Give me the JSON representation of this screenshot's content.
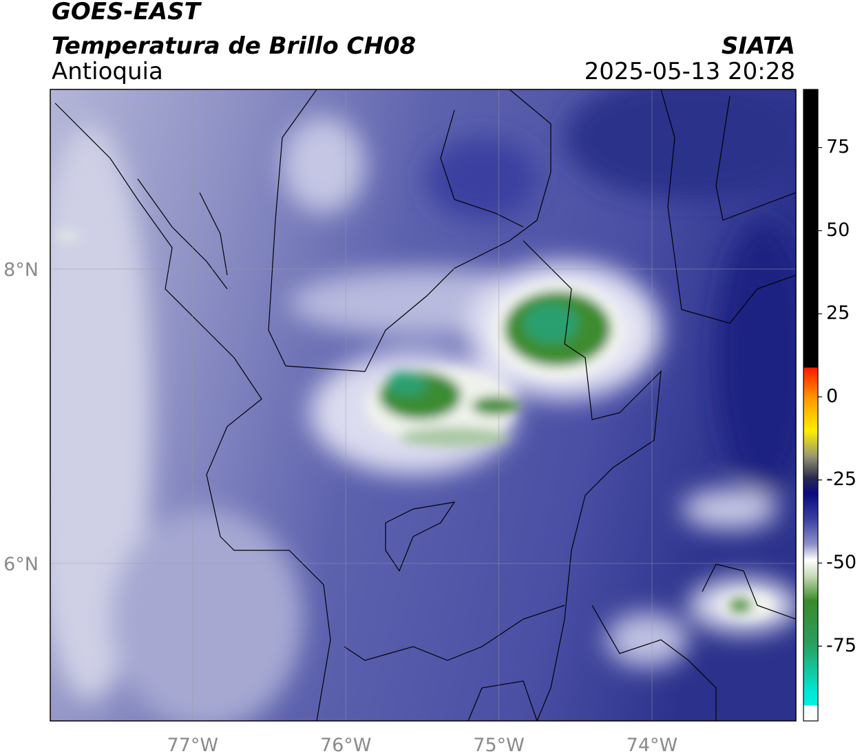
{
  "header": {
    "title": "GOES-EAST",
    "subtitle": "Temperatura de Brillo CH08",
    "region": "Antioquia",
    "source": "SIATA",
    "datetime": "2025-05-13 20:28"
  },
  "map": {
    "lon_range": [
      -77.93,
      -73.06
    ],
    "lat_range": [
      4.93,
      9.22
    ],
    "lon_ticks": [
      {
        "value": -77,
        "label": "77°W"
      },
      {
        "value": -76,
        "label": "76°W"
      },
      {
        "value": -75,
        "label": "75°W"
      },
      {
        "value": -74,
        "label": "74°W"
      }
    ],
    "lat_ticks": [
      {
        "value": 8,
        "label": "8°N"
      },
      {
        "value": 6,
        "label": "6°N"
      }
    ]
  },
  "colorbar": {
    "range": [
      -97.5,
      92.5
    ],
    "ticks": [
      75,
      50,
      25,
      0,
      -25,
      -50,
      -75
    ]
  }
}
